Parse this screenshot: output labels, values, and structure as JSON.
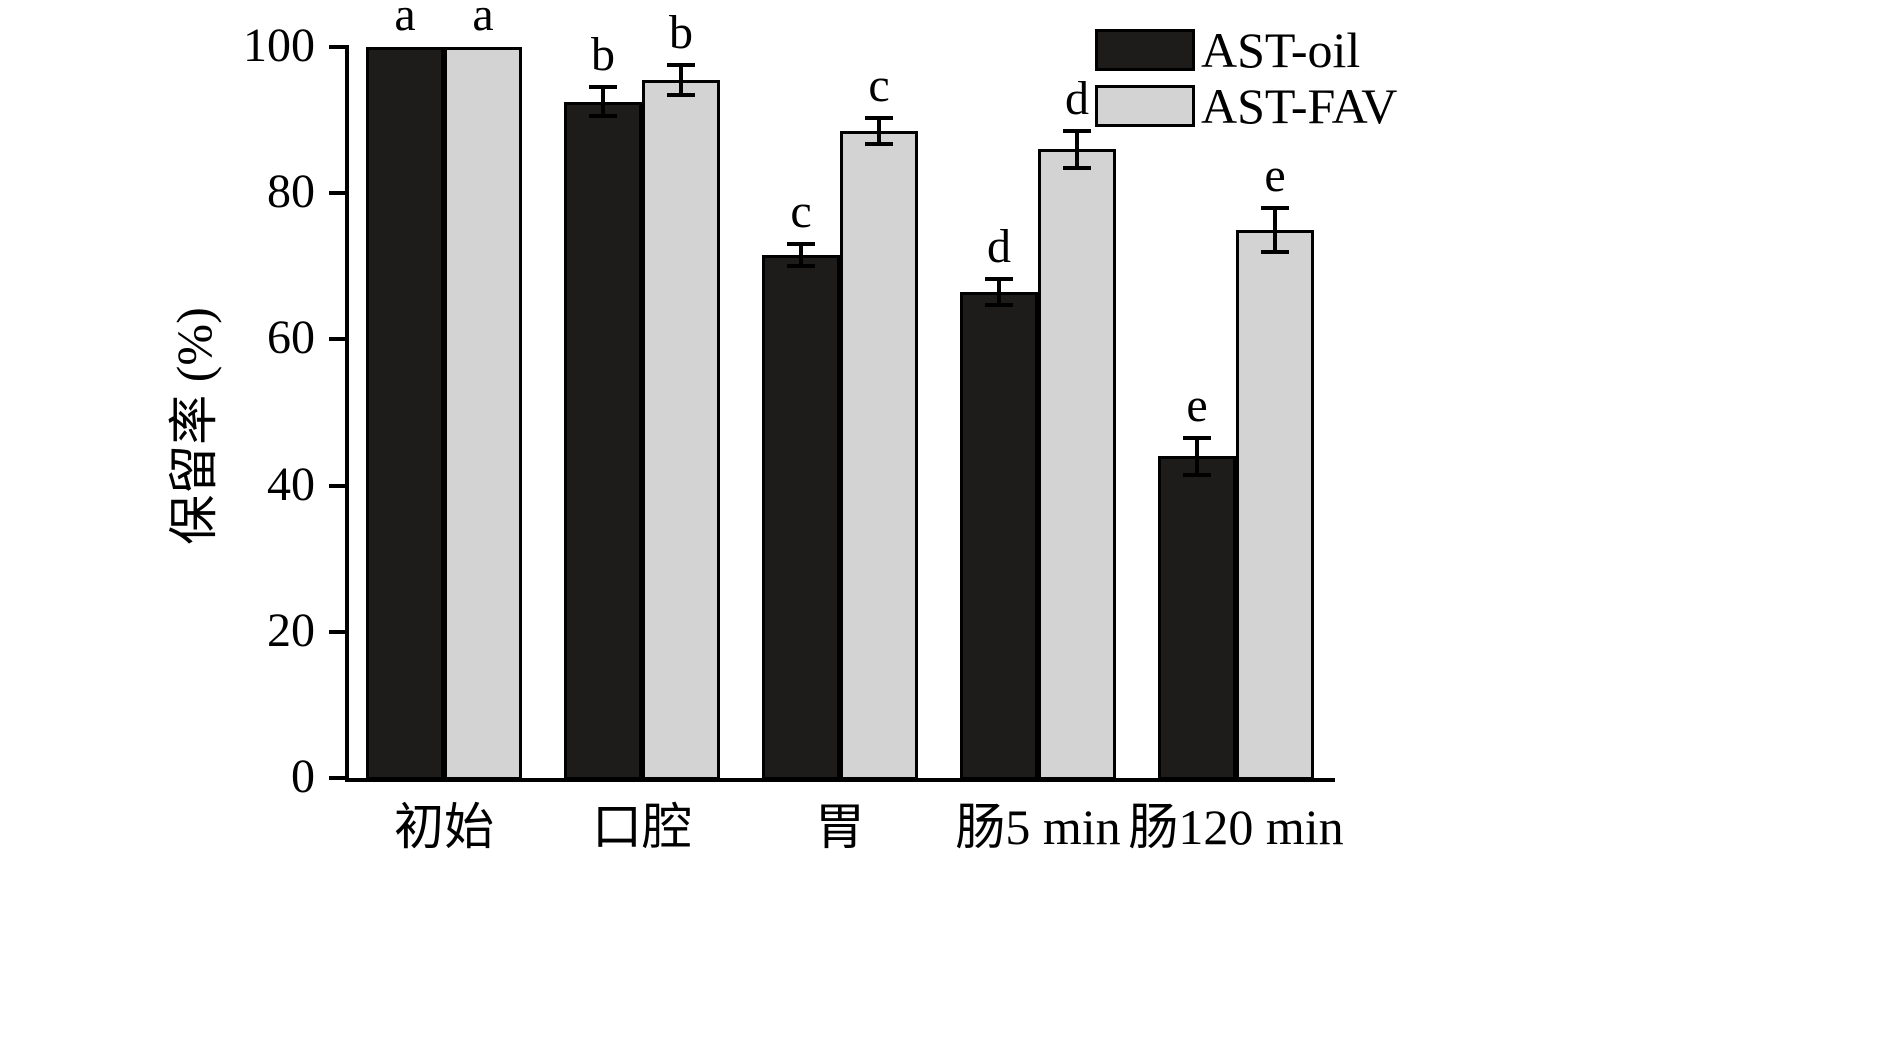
{
  "chart_data": {
    "type": "bar",
    "title": "",
    "xlabel": "",
    "ylabel": "保留率 (%)",
    "categories": [
      "初始",
      "口腔",
      "胃",
      "肠5 min",
      "肠120 min"
    ],
    "series": [
      {
        "name": "AST-oil",
        "color": "#1e1b1b",
        "values": [
          100,
          92.5,
          71.5,
          66.5,
          44
        ],
        "errors": [
          0,
          2,
          1.5,
          1.8,
          2.5
        ],
        "letters": [
          "a",
          "b",
          "c",
          "d",
          "e"
        ]
      },
      {
        "name": "AST-FAV",
        "color": "#d3d3d3",
        "values": [
          100,
          95.5,
          88.5,
          86,
          75
        ],
        "errors": [
          0,
          2,
          1.8,
          2.5,
          3
        ],
        "letters": [
          "a",
          "b",
          "c",
          "d",
          "e"
        ]
      }
    ],
    "ylim": [
      0,
      100
    ],
    "yticks": [
      0,
      20,
      40,
      60,
      80,
      100
    ],
    "grid": "off",
    "legend_position": "top-right",
    "axis_color": "#000000",
    "background_color": "#ffffff"
  }
}
